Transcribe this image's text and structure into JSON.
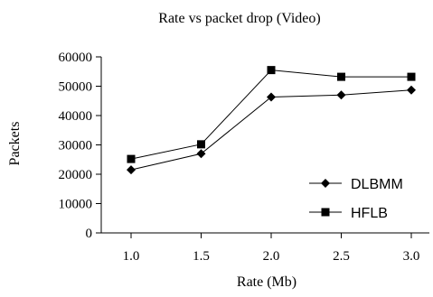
{
  "chart_data": {
    "type": "line",
    "title": "Rate vs packet drop (Video)",
    "xlabel": "Rate (Mb)",
    "ylabel": "Packets",
    "categories": [
      "1.0",
      "1.5",
      "2.0",
      "2.5",
      "3.0"
    ],
    "ylim": [
      0,
      60000
    ],
    "yticks": [
      "0",
      "10000",
      "20000",
      "30000",
      "40000",
      "50000",
      "60000"
    ],
    "grid": false,
    "legend_position": "bottom-right",
    "series": [
      {
        "name": "DLBMM",
        "marker": "diamond",
        "values": [
          21500,
          27000,
          46300,
          47000,
          48700
        ]
      },
      {
        "name": "HFLB",
        "marker": "square",
        "values": [
          25200,
          30200,
          55500,
          53200,
          53200
        ]
      }
    ]
  }
}
